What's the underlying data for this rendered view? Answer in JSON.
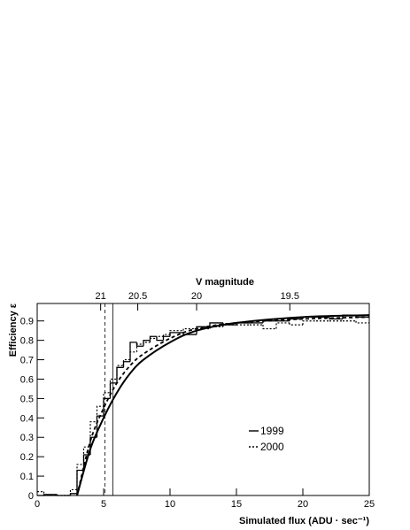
{
  "chart_data": {
    "type": "histogram",
    "xlabel": "Simulated flux (ADU · sec⁻¹)",
    "ylabel": "Efficiency  ε",
    "x2label": "V magnitude",
    "xlim": [
      0,
      25
    ],
    "xticks": [
      0,
      5,
      10,
      15,
      20,
      25
    ],
    "ylim": [
      0,
      0.99
    ],
    "yticks": [
      0,
      0.1,
      0.2,
      0.3,
      0.4,
      0.5,
      0.6,
      0.7,
      0.8,
      0.9
    ],
    "x2scale": "magnitude",
    "x2_zeropoint_flux": 12,
    "x2_zeropoint_mag": 20,
    "x2ticks": [
      21,
      20.5,
      20,
      19.5
    ],
    "bins": [
      0,
      0.5,
      1,
      1.5,
      2,
      2.5,
      3,
      3.5,
      4,
      4.5,
      5,
      5.5,
      6,
      6.5,
      7,
      7.5,
      8,
      8.5,
      9,
      9.5,
      10,
      11,
      12,
      13,
      14,
      15,
      16,
      17,
      18,
      19,
      20,
      21,
      22,
      23,
      24,
      25
    ],
    "series": [
      {
        "name": "1999",
        "color": "#000000",
        "style": "solid",
        "values": [
          0,
          0.005,
          0.005,
          0,
          0,
          0.01,
          0.13,
          0.21,
          0.3,
          0.41,
          0.5,
          0.58,
          0.66,
          0.69,
          0.79,
          0.77,
          0.8,
          0.82,
          0.8,
          0.82,
          0.84,
          0.83,
          0.87,
          0.89,
          0.88,
          0.89,
          0.89,
          0.9,
          0.9,
          0.91,
          0.92,
          0.92,
          0.91,
          0.93,
          0.92
        ],
        "fit": {
          "x": [
            3,
            4,
            5,
            6,
            7,
            8,
            10,
            12,
            15,
            20,
            25
          ],
          "values": [
            0,
            0.24,
            0.4,
            0.53,
            0.63,
            0.7,
            0.79,
            0.85,
            0.89,
            0.92,
            0.93
          ]
        }
      },
      {
        "name": "2000",
        "color": "#000000",
        "style": "dotted",
        "values": [
          0.02,
          0,
          0,
          0,
          0,
          0.03,
          0.16,
          0.25,
          0.38,
          0.46,
          0.53,
          0.6,
          0.67,
          0.7,
          0.74,
          0.78,
          0.79,
          0.81,
          0.82,
          0.83,
          0.85,
          0.86,
          0.86,
          0.87,
          0.88,
          0.88,
          0.88,
          0.86,
          0.89,
          0.88,
          0.9,
          0.9,
          0.9,
          0.9,
          0.89
        ],
        "fit": {
          "x": [
            3,
            4,
            5,
            6,
            7,
            8,
            10,
            12,
            15,
            20,
            25
          ],
          "values": [
            0,
            0.28,
            0.45,
            0.58,
            0.67,
            0.73,
            0.81,
            0.86,
            0.89,
            0.91,
            0.92
          ]
        }
      }
    ],
    "vlines": [
      {
        "x": 5.1,
        "style": "dashed"
      },
      {
        "x": 5.7,
        "style": "solid"
      }
    ]
  }
}
